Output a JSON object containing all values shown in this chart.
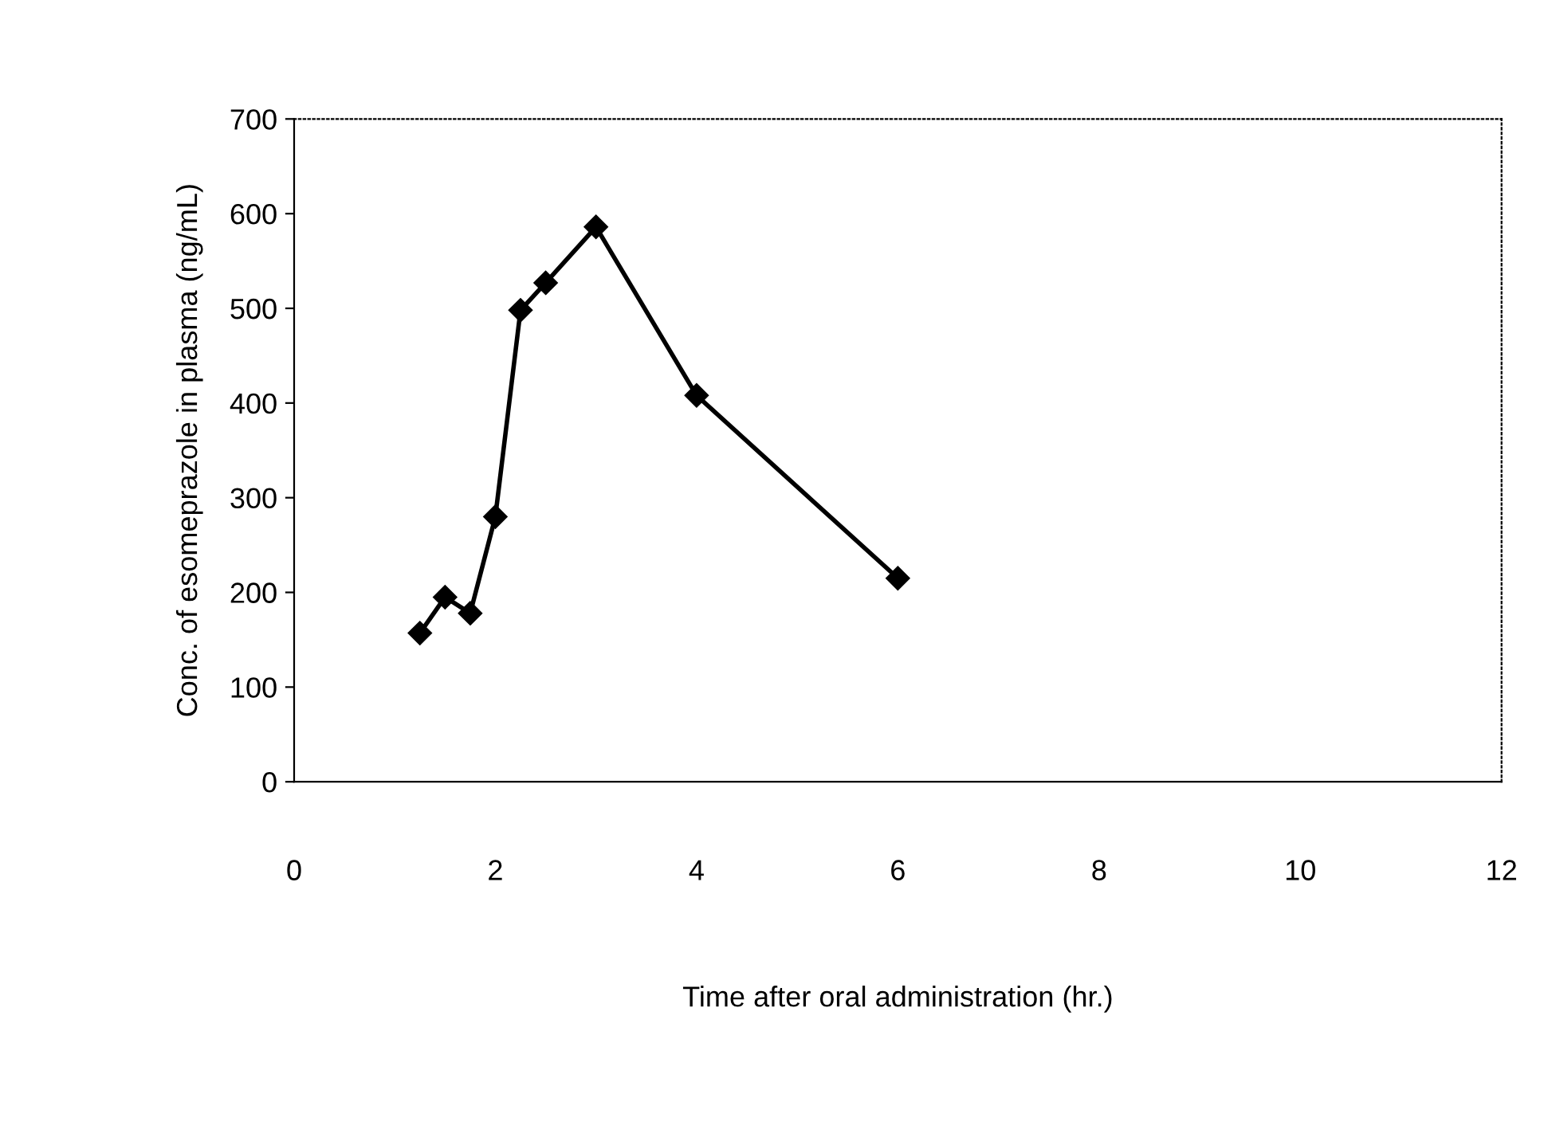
{
  "chart_data": {
    "type": "line",
    "xlabel": "Time after oral administration (hr.)",
    "ylabel": "Conc. of esomeprazole in plasma (ng/mL)",
    "x": [
      1.25,
      1.5,
      1.75,
      2,
      2.25,
      2.5,
      3,
      4,
      6
    ],
    "series": [
      {
        "color": "#000000",
        "values": [
          157,
          195,
          178,
          280,
          498,
          527,
          586,
          408,
          215
        ]
      }
    ],
    "xlim": [
      0,
      12
    ],
    "xticks": [
      0,
      2,
      4,
      6,
      8,
      10,
      12
    ],
    "ylim": [
      0,
      700
    ],
    "yticks": [
      0,
      100,
      200,
      300,
      400,
      500,
      600,
      700
    ],
    "marker": "diamond",
    "line_style": "solid",
    "grid": false
  }
}
